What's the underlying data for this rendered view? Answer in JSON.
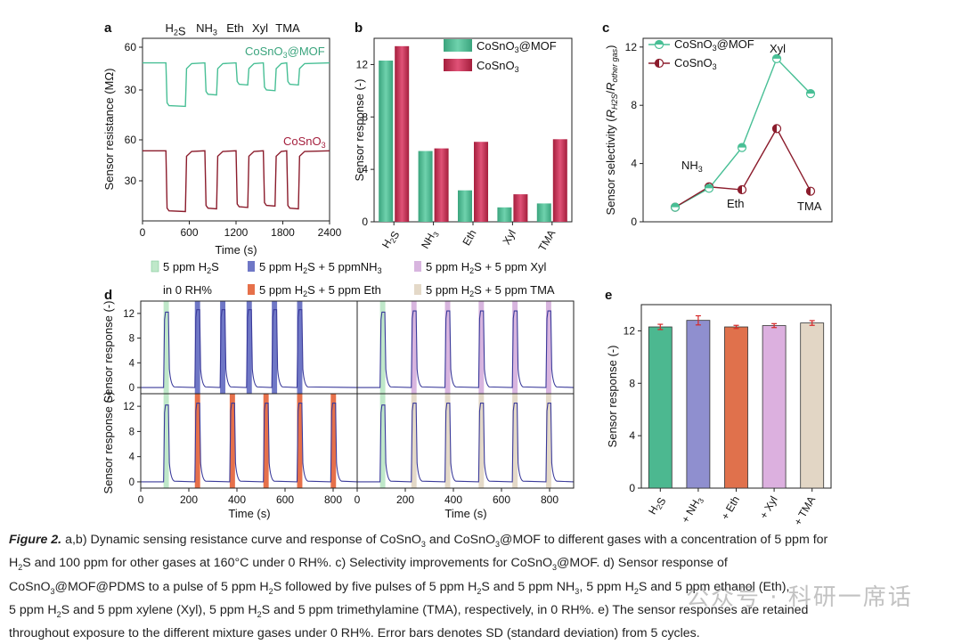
{
  "colors": {
    "mof": "#48bf95",
    "sno": "#c2304f",
    "sno_line": "#8b1c2c",
    "line_d": "#3a3a9a",
    "h2s_band": "#bfe8c9",
    "nh3_band": "#6f77c6",
    "xyl_band": "#d8b5df",
    "eth_band": "#e6704a",
    "tma_band": "#e4d9c8",
    "bar_h2s": "#4cb890",
    "bar_nh3": "#8f8fcf",
    "bar_eth": "#e0714c",
    "bar_xyl": "#dcb0df",
    "bar_tma": "#e2d6c5"
  },
  "panel_a": {
    "letter": "a",
    "gases_header": [
      "H2S",
      "NH3",
      "Eth",
      "Xyl",
      "TMA"
    ],
    "ylabel": "Sensor resistance (MΩ)",
    "xlabel": "Time (s)",
    "xticks": [
      "0",
      "600",
      "1200",
      "1800",
      "2400"
    ],
    "yticks_top": [
      "60",
      "30"
    ],
    "yticks_bottom": [
      "60",
      "30"
    ],
    "label_mof": "CoSnO3@MOF",
    "label_sno": "CoSnO3"
  },
  "panel_b": {
    "letter": "b",
    "ylabel": "Sensor response (-)",
    "legend": [
      "CoSnO3@MOF",
      "CoSnO3"
    ],
    "yticks": [
      "0",
      "4",
      "8",
      "12"
    ]
  },
  "panel_c": {
    "letter": "c",
    "ylabel": "Sensor selectivity (RH2S/Rother gas)",
    "legend": [
      "CoSnO3@MOF",
      "CoSnO3"
    ],
    "yticks": [
      "0",
      "4",
      "8",
      "12"
    ],
    "point_labels": [
      "NH3",
      "Eth",
      "Xyl",
      "TMA"
    ]
  },
  "legend_d": {
    "items": [
      "5 ppm H2S",
      "5 ppm H2S + 5 ppmNH3",
      "5 ppm H2S + 5 ppm Xyl",
      "5 ppm H2S + 5 ppm Eth",
      "5 ppm H2S + 5 ppm TMA"
    ],
    "rh_note": "in 0 RH%"
  },
  "panel_d": {
    "letter": "d",
    "ylabel": "Sensor response (-)",
    "xlabel": "Time (s)",
    "xticks": [
      "0",
      "200",
      "400",
      "600",
      "800"
    ],
    "yticks": [
      "0",
      "4",
      "8",
      "12"
    ]
  },
  "panel_e": {
    "letter": "e",
    "ylabel": "Sensor response (-)",
    "yticks": [
      "0",
      "4",
      "8",
      "12"
    ]
  },
  "chart_data": [
    {
      "type": "line",
      "panel": "a",
      "xlabel": "Time (s)",
      "ylabel": "Sensor resistance (MΩ)",
      "xlim": [
        0,
        2400
      ],
      "series": [
        {
          "name": "CoSnO3@MOF",
          "baseline": 49,
          "pulse_starts": [
            300,
            800,
            1200,
            1550,
            1850
          ],
          "pulse_minima": [
            19,
            27,
            34,
            30,
            34
          ]
        },
        {
          "name": "CoSnO3",
          "baseline": 52,
          "pulse_starts": [
            300,
            800,
            1200,
            1550,
            1850
          ],
          "pulse_minima": [
            8,
            10,
            11,
            12,
            10
          ]
        }
      ]
    },
    {
      "type": "bar",
      "panel": "b",
      "ylabel": "Sensor response (-)",
      "categories": [
        "H2S",
        "NH3",
        "Eth",
        "Xyl",
        "TMA"
      ],
      "ylim": [
        0,
        14
      ],
      "series": [
        {
          "name": "CoSnO3@MOF",
          "values": [
            12.3,
            5.4,
            2.4,
            1.1,
            1.4
          ]
        },
        {
          "name": "CoSnO3",
          "values": [
            13.4,
            5.6,
            6.1,
            2.1,
            6.3
          ]
        }
      ]
    },
    {
      "type": "line",
      "panel": "c",
      "ylabel": "Sensor selectivity (RH2S/Rother gas)",
      "ylim": [
        0,
        12.6
      ],
      "categories": [
        "H2S",
        "NH3",
        "Eth",
        "Xyl",
        "TMA"
      ],
      "series": [
        {
          "name": "CoSnO3@MOF",
          "values": [
            1.0,
            2.3,
            5.1,
            11.2,
            8.8
          ]
        },
        {
          "name": "CoSnO3",
          "values": [
            1.0,
            2.4,
            2.2,
            6.4,
            2.1
          ]
        }
      ]
    },
    {
      "type": "line",
      "panel": "d",
      "xlabel": "Time (s)",
      "ylabel": "Sensor response (-)",
      "xlim": [
        0,
        900
      ],
      "ylim": [
        -1,
        14
      ],
      "subplots": [
        {
          "pulses": [
            {
              "start": 95,
              "gas": "5 ppm H2S",
              "peak": 12.2
            },
            {
              "start": 225,
              "gas": "5 ppm H2S + 5 ppmNH3",
              "peak": 12.6
            },
            {
              "start": 330,
              "gas": "5 ppm H2S + 5 ppmNH3",
              "peak": 12.6
            },
            {
              "start": 440,
              "gas": "5 ppm H2S + 5 ppmNH3",
              "peak": 12.6
            },
            {
              "start": 545,
              "gas": "5 ppm H2S + 5 ppmNH3",
              "peak": 12.6
            },
            {
              "start": 650,
              "gas": "5 ppm H2S + 5 ppmNH3",
              "peak": 12.6
            }
          ]
        },
        {
          "pulses": [
            {
              "start": 95,
              "gas": "5 ppm H2S",
              "peak": 12.2
            },
            {
              "start": 225,
              "gas": "5 ppm H2S + 5 ppm Xyl",
              "peak": 12.4
            },
            {
              "start": 365,
              "gas": "5 ppm H2S + 5 ppm Xyl",
              "peak": 12.4
            },
            {
              "start": 505,
              "gas": "5 ppm H2S + 5 ppm Xyl",
              "peak": 12.4
            },
            {
              "start": 645,
              "gas": "5 ppm H2S + 5 ppm Xyl",
              "peak": 12.4
            },
            {
              "start": 785,
              "gas": "5 ppm H2S + 5 ppm Xyl",
              "peak": 12.4
            }
          ]
        },
        {
          "pulses": [
            {
              "start": 95,
              "gas": "5 ppm H2S",
              "peak": 12.2
            },
            {
              "start": 225,
              "gas": "5 ppm H2S + 5 ppm Eth",
              "peak": 12.5
            },
            {
              "start": 370,
              "gas": "5 ppm H2S + 5 ppm Eth",
              "peak": 12.5
            },
            {
              "start": 510,
              "gas": "5 ppm H2S + 5 ppm Eth",
              "peak": 12.5
            },
            {
              "start": 650,
              "gas": "5 ppm H2S + 5 ppm Eth",
              "peak": 12.5
            },
            {
              "start": 790,
              "gas": "5 ppm H2S + 5 ppm Eth",
              "peak": 12.5
            }
          ]
        },
        {
          "pulses": [
            {
              "start": 95,
              "gas": "5 ppm H2S",
              "peak": 12.2
            },
            {
              "start": 225,
              "gas": "5 ppm H2S + 5 ppm TMA",
              "peak": 12.5
            },
            {
              "start": 365,
              "gas": "5 ppm H2S + 5 ppm TMA",
              "peak": 12.5
            },
            {
              "start": 505,
              "gas": "5 ppm H2S + 5 ppm TMA",
              "peak": 12.5
            },
            {
              "start": 645,
              "gas": "5 ppm H2S + 5 ppm TMA",
              "peak": 12.5
            },
            {
              "start": 785,
              "gas": "5 ppm H2S + 5 ppm TMA",
              "peak": 12.5
            }
          ]
        }
      ]
    },
    {
      "type": "bar",
      "panel": "e",
      "ylabel": "Sensor response (-)",
      "categories": [
        "H2S",
        "+ NH3",
        "+ Eth",
        "+ Xyl",
        "+ TMA"
      ],
      "values": [
        12.3,
        12.8,
        12.3,
        12.4,
        12.6
      ],
      "errors": [
        0.2,
        0.35,
        0.12,
        0.15,
        0.18
      ],
      "ylim": [
        0,
        14
      ]
    }
  ],
  "caption": {
    "fig_label": "Figure 2.",
    "line1": "a,b) Dynamic sensing resistance curve and response of CoSnO3 and CoSnO3@MOF to different gases with a concentration of 5 ppm for",
    "line2": "H2S and 100 ppm for other gases at 160°C under 0 RH%. c) Selectivity improvements for CoSnO3@MOF. d) Sensor response of",
    "line3": "CoSnO3@MOF@PDMS to a pulse of 5 ppm H2S followed by five pulses of 5 ppm H2S and 5 ppm NH3, 5 ppm H2S and 5 ppm ethanol (Eth),",
    "line4": "5 ppm H2S and 5 ppm xylene (Xyl), 5 ppm H2S and 5 ppm trimethylamine (TMA), respectively, in 0 RH%. e) The sensor responses are retained",
    "line5": "throughout exposure to the different mixture gases under 0 RH%. Error bars denotes SD (standard deviation) from 5 cycles."
  },
  "watermark": "公众号 · 科研一席话"
}
